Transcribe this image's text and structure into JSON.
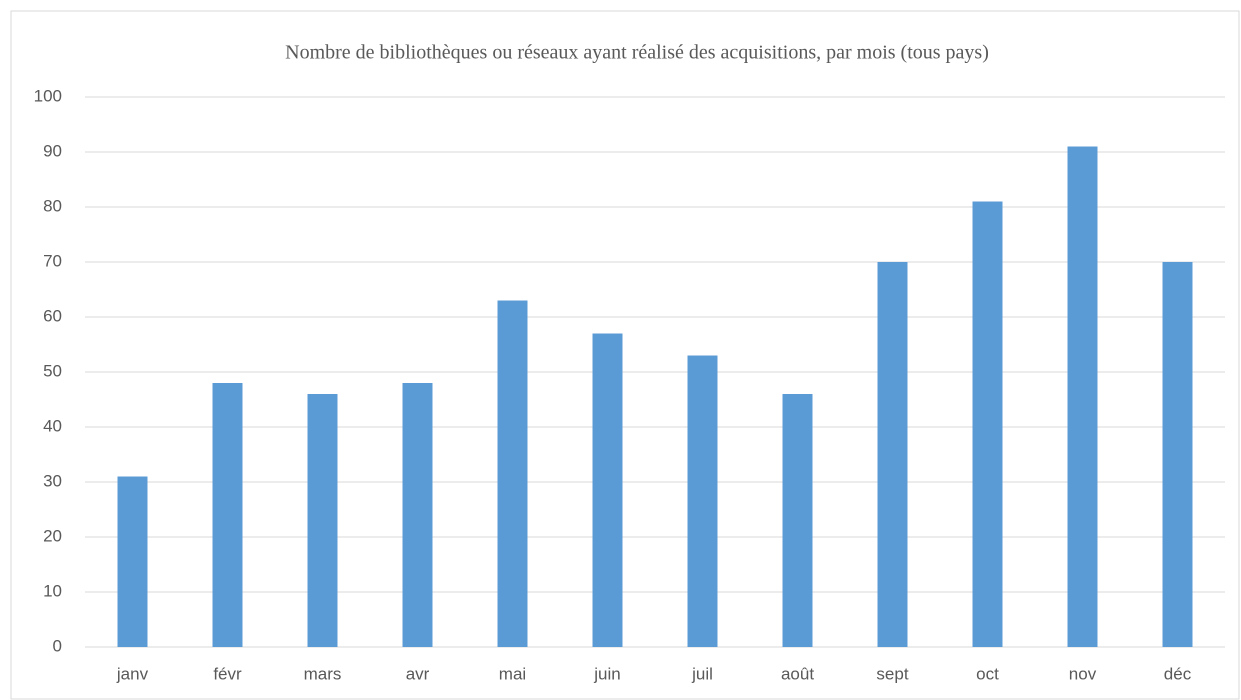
{
  "chart_data": {
    "type": "bar",
    "title": "Nombre de bibliothèques ou réseaux ayant réalisé des acquisitions, par mois (tous pays)",
    "categories": [
      "janv",
      "févr",
      "mars",
      "avr",
      "mai",
      "juin",
      "juil",
      "août",
      "sept",
      "oct",
      "nov",
      "déc"
    ],
    "values": [
      31,
      48,
      46,
      48,
      63,
      57,
      53,
      46,
      70,
      81,
      91,
      70
    ],
    "color": "#5b9bd5",
    "ylim": [
      0,
      100
    ],
    "yticks": [
      0,
      10,
      20,
      30,
      40,
      50,
      60,
      70,
      80,
      90,
      100
    ],
    "grid": true
  }
}
